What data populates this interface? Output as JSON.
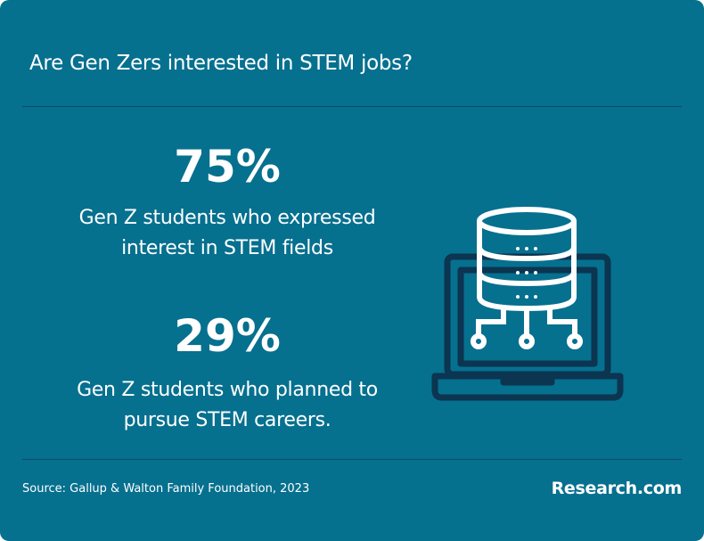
{
  "header": {
    "title": "Are Gen Zers interested in STEM jobs?"
  },
  "stats": [
    {
      "value": "75%",
      "label": "Gen Z students who expressed interest in STEM fields"
    },
    {
      "value": "29%",
      "label": "Gen Z students who planned to pursue STEM careers."
    }
  ],
  "footer": {
    "source": "Source: Gallup & Walton Family Foundation, 2023",
    "brand": "Research.com"
  }
}
